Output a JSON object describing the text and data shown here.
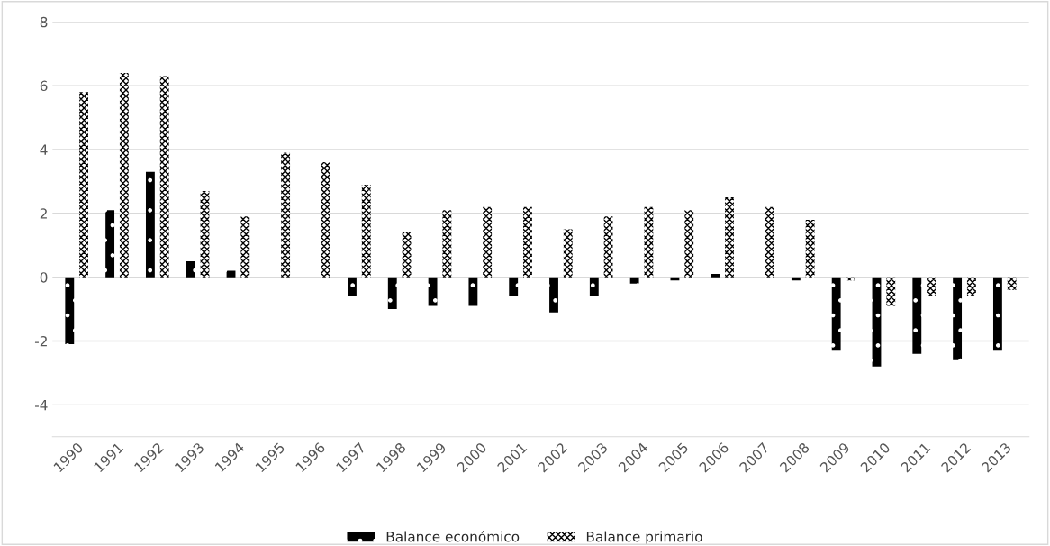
{
  "chart_data": {
    "type": "bar",
    "categories": [
      "1990",
      "1991",
      "1992",
      "1993",
      "1994",
      "1995",
      "1996",
      "1997",
      "1998",
      "1999",
      "2000",
      "2001",
      "2002",
      "2003",
      "2004",
      "2005",
      "2006",
      "2007",
      "2008",
      "2009",
      "2010",
      "2011",
      "2012",
      "2013"
    ],
    "series": [
      {
        "name": "Balance económico",
        "color": "#000000",
        "values": [
          -2.1,
          2.1,
          3.3,
          0.5,
          0.2,
          0,
          0,
          -0.6,
          -1.0,
          -0.9,
          -0.9,
          -0.6,
          -1.1,
          -0.6,
          -0.2,
          -0.1,
          0.1,
          0,
          -0.1,
          -2.3,
          -2.8,
          -2.4,
          -2.6,
          -2.3
        ]
      },
      {
        "name": "Balance primario",
        "color": "#000000",
        "values": [
          5.8,
          6.4,
          6.3,
          2.7,
          1.9,
          3.9,
          3.6,
          2.9,
          1.4,
          2.1,
          2.2,
          2.2,
          1.5,
          1.9,
          2.2,
          2.1,
          2.5,
          2.2,
          1.8,
          -0.1,
          -0.9,
          -0.6,
          -0.6,
          -0.4
        ]
      }
    ],
    "ylim": [
      -5,
      8
    ],
    "yticks": [
      -4,
      -2,
      0,
      2,
      4,
      6,
      8
    ],
    "grid": "y",
    "legend": "bottom"
  }
}
